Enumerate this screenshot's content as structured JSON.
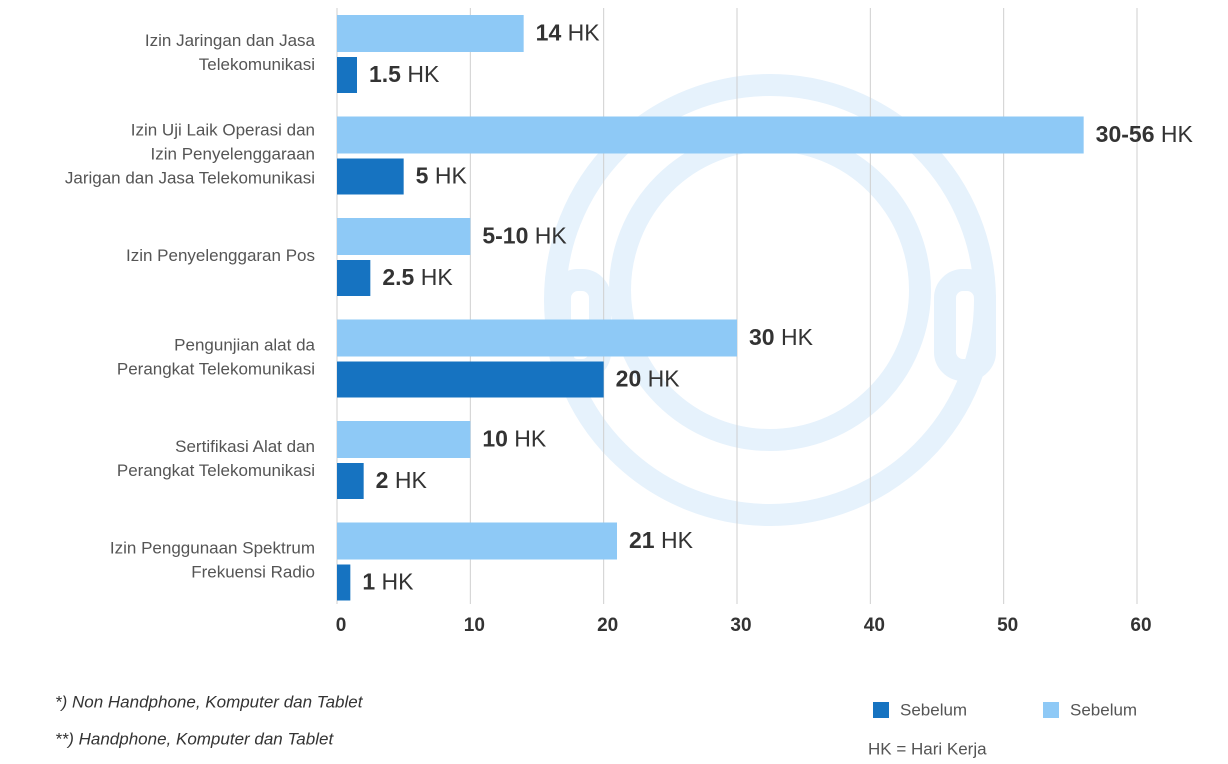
{
  "chart_data": {
    "type": "bar",
    "orientation": "horizontal",
    "categories": [
      "Izin Jaringan dan Jasa\nTelekomunikasi",
      "Izin Uji Laik Operasi dan\nIzin Penyelenggaraan\nJarigan dan Jasa Telekomunikasi",
      "Izin Penyelenggaran Pos",
      "Pengunjian alat da\nPerangkat Telekomunikasi",
      "Sertifikasi Alat dan\nPerangkat Telekomunikasi",
      "Izin Penggunaan Spektrum\nFrekuensi Radio"
    ],
    "series": [
      {
        "name": "Sebelum",
        "color": "#1673c1",
        "values": [
          1.5,
          5,
          2.5,
          20,
          2,
          1
        ],
        "value_labels": [
          "1.5 HK",
          "5 HK",
          "2.5 HK",
          "20 HK",
          "2 HK",
          "1 HK"
        ]
      },
      {
        "name": "Sebelum",
        "color": "#8ec9f6",
        "values": [
          14,
          56,
          10,
          30,
          10,
          21
        ],
        "value_labels": [
          "14 HK",
          "30-56 HK",
          "5-10 HK",
          "30 HK",
          "10 HK",
          "21 HK"
        ]
      }
    ],
    "xlim": [
      0,
      60
    ],
    "xticks": [
      0,
      10,
      20,
      30,
      40,
      50,
      60
    ],
    "grid": true,
    "legend": "bottom-right",
    "notes": [
      "*) Non Handphone, Komputer dan Tablet",
      "**) Handphone, Komputer dan Tablet"
    ],
    "legend_note": "HK = Hari Kerja"
  }
}
